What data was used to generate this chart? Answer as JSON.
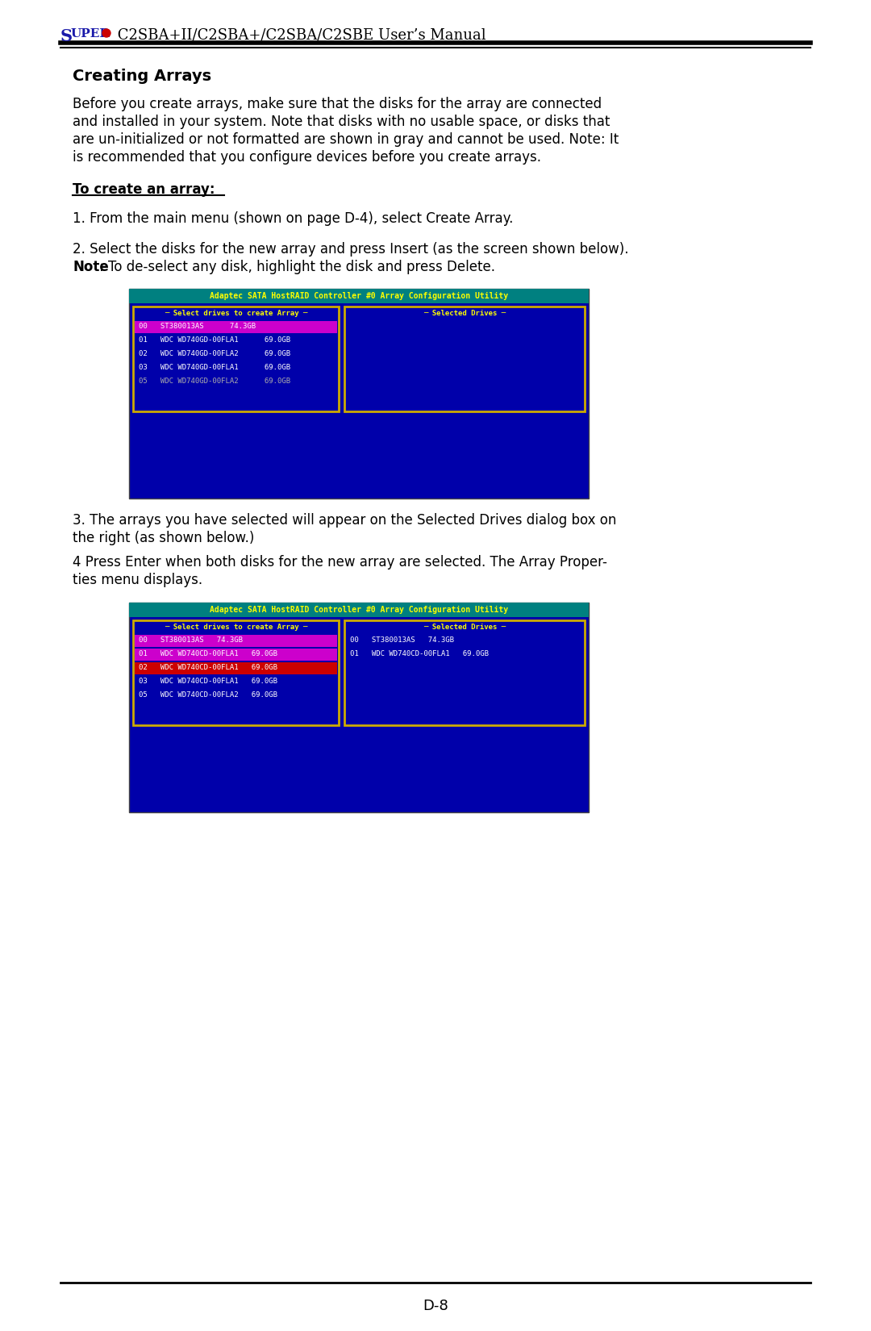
{
  "page_bg": "#ffffff",
  "header_super": "SUPER",
  "header_rest": " C2SBA+II/C2SBA+/C2SBA/C2SBE User’s Manual",
  "footer_text": "D-8",
  "section_title": "Creating Arrays",
  "para1_lines": [
    "Before you create arrays, make sure that the disks for the array are connected",
    "and installed in your system. Note that disks with no usable space, or disks that",
    "are un-initialized or not formatted are shown in gray and cannot be used. Note: It",
    "is recommended that you configure devices before you create arrays."
  ],
  "underline_label": "To create an array:",
  "step1": "1. From the main menu (shown on page D-4), select Create Array.",
  "step2a": "2. Select the disks for the new array and press Insert (as the screen shown below).",
  "step2b_bold": "Note",
  "step2b_rest": ": To de-select any disk, highlight the disk and press Delete.",
  "step3_lines": [
    "3. The arrays you have selected will appear on the Selected Drives dialog box on",
    "the right (as shown below.)"
  ],
  "step4_lines": [
    "4 Press Enter when both disks for the new array are selected. The Array Proper-",
    "ties menu displays."
  ],
  "screen1": {
    "title_bar": "Adaptec SATA HostRAID Controller #0 Array Configuration Utility",
    "title_bg": "#008080",
    "title_fg": "#ffff00",
    "left_panel_title": "Select drives to create Array",
    "right_panel_title": "Selected Drives",
    "panel_bg": "#0000aa",
    "panel_border": "#ccaa00",
    "panel_title_fg": "#ffff00",
    "drives": [
      {
        "id": "00",
        "name": "ST380013AS",
        "size": "74.3GB",
        "highlight": true,
        "gray": false
      },
      {
        "id": "01",
        "name": "WDC WD740GD-00FLA1",
        "size": "69.0GB",
        "highlight": false,
        "gray": false
      },
      {
        "id": "02",
        "name": "WDC WD740GD-00FLA2",
        "size": "69.0GB",
        "highlight": false,
        "gray": false
      },
      {
        "id": "03",
        "name": "WDC WD740GD-00FLA1",
        "size": "69.0GB",
        "highlight": false,
        "gray": false
      },
      {
        "id": "05",
        "name": "WDC WD740GD-00FLA2",
        "size": "69.0GB",
        "highlight": false,
        "gray": true
      }
    ],
    "drive_fg": "#ffffff",
    "drive_highlight_bg": "#cc00cc",
    "drive_gray_fg": "#aaaaaa"
  },
  "screen2": {
    "title_bar": "Adaptec SATA HostRAID Controller #0 Array Configuration Utility",
    "title_bg": "#008080",
    "title_fg": "#ffff00",
    "left_panel_title": "Select drives to create Array",
    "right_panel_title": "Selected Drives",
    "panel_bg": "#0000aa",
    "panel_border": "#ccaa00",
    "panel_title_fg": "#ffff00",
    "left_drives": [
      {
        "id": "00",
        "name": "ST380013AS",
        "size": "74.3GB",
        "row_bg": "#cc00cc"
      },
      {
        "id": "01",
        "name": "WDC WD740CD-00FLA1",
        "size": "69.0GB",
        "row_bg": "#cc00cc"
      },
      {
        "id": "02",
        "name": "WDC WD740CD-00FLA1",
        "size": "69.0GB",
        "row_bg": "#cc0000"
      },
      {
        "id": "03",
        "name": "WDC WD740CD-00FLA1",
        "size": "69.0GB",
        "row_bg": "#0000aa"
      },
      {
        "id": "05",
        "name": "WDC WD740CD-00FLA2",
        "size": "69.0GB",
        "row_bg": "#0000aa"
      }
    ],
    "right_drives": [
      {
        "id": "00",
        "name": "ST380013AS",
        "size": "74.3GB"
      },
      {
        "id": "01",
        "name": "WDC WD740CD-00FLA1",
        "size": "69.0GB"
      }
    ],
    "drive_fg": "#ffffff"
  }
}
